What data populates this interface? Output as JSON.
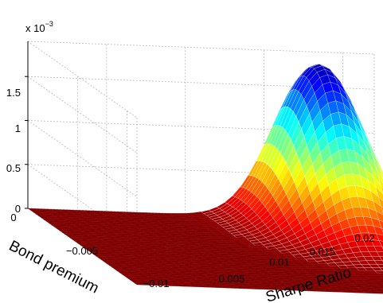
{
  "chart_data": {
    "type": "surface",
    "title": "",
    "xlabel": "Sharpe Ratio",
    "ylabel": "Bond premium",
    "zlabel": "",
    "exponent": {
      "base": "x 10",
      "power": "−3"
    },
    "x_ticks": [
      "0.005",
      "0.01",
      "0.015",
      "0.02"
    ],
    "y_ticks": [
      "0",
      "−0.005",
      "−0.01"
    ],
    "z_ticks": [
      "0",
      "0.5",
      "1",
      "1.5"
    ],
    "xlim": [
      0.0,
      0.022
    ],
    "ylim": [
      -0.011,
      0.0
    ],
    "zlim": [
      0.0,
      0.0019
    ],
    "surface": {
      "shape": "gaussian",
      "peak_x": 0.018,
      "peak_y": -0.001,
      "peak_z": 0.00183,
      "sigma_x": 0.0025,
      "sigma_y": 0.0025
    },
    "grid": true,
    "colormap": "jet"
  }
}
